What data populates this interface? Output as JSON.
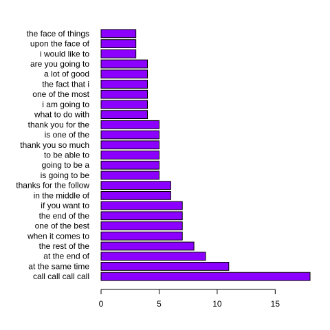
{
  "chart_data": {
    "type": "bar",
    "orientation": "horizontal",
    "categories": [
      "call call call call",
      "at the same time",
      "at the end of",
      "the rest of the",
      "when it comes to",
      "one of the best",
      "the end of the",
      "if you want to",
      "in the middle of",
      "thanks for the follow",
      "is going to be",
      "going to be a",
      "to be able to",
      "thank you so much",
      "is one of the",
      "thank you for the",
      "what to do with",
      "i am going to",
      "one of the most",
      "the fact that i",
      "a lot of good",
      "are you going to",
      "i would like to",
      "upon the face of",
      "the face of things"
    ],
    "values": [
      18,
      11,
      9,
      8,
      7,
      7,
      7,
      7,
      6,
      6,
      5,
      5,
      5,
      5,
      5,
      5,
      4,
      4,
      4,
      4,
      4,
      4,
      3,
      3,
      3
    ],
    "xlim": [
      0,
      18.7
    ],
    "xticks": [
      0,
      5,
      10,
      15
    ],
    "title": "",
    "xlabel": "",
    "ylabel": "",
    "grid": false,
    "bar_color": "#8B00FF",
    "bar_outline": "#000000"
  }
}
